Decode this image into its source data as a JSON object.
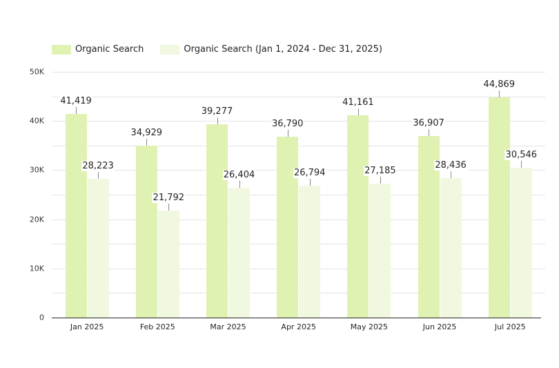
{
  "legend": {
    "items": [
      {
        "label": "Organic Search",
        "color": "#dff2b2"
      },
      {
        "label": "Organic Search (Jan 1, 2024 - Dec 31, 2025)",
        "color": "#f1f8e0"
      }
    ]
  },
  "y_axis": {
    "ticks": [
      {
        "value": 0,
        "label": "0"
      },
      {
        "value": 10000,
        "label": "10K"
      },
      {
        "value": 20000,
        "label": "20K"
      },
      {
        "value": 30000,
        "label": "30K"
      },
      {
        "value": 40000,
        "label": "40K"
      },
      {
        "value": 50000,
        "label": "50K"
      }
    ]
  },
  "chart_data": {
    "type": "bar",
    "title": "",
    "xlabel": "",
    "ylabel": "",
    "ylim": [
      0,
      50000
    ],
    "grid": true,
    "legend_position": "top-left",
    "categories": [
      "Jan 2025",
      "Feb 2025",
      "Mar 2025",
      "Apr 2025",
      "May 2025",
      "Jun 2025",
      "Jul 2025"
    ],
    "series": [
      {
        "name": "Organic Search",
        "color": "#dff2b2",
        "values": [
          41419,
          34929,
          39277,
          36790,
          41161,
          36907,
          44869
        ],
        "labels": [
          "41,419",
          "34,929",
          "39,277",
          "36,790",
          "41,161",
          "36,907",
          "44,869"
        ]
      },
      {
        "name": "Organic Search (Jan 1, 2024 - Dec 31, 2025)",
        "color": "#f1f8e0",
        "values": [
          28223,
          21792,
          26404,
          26794,
          27185,
          28436,
          30546
        ],
        "labels": [
          "28,223",
          "21,792",
          "26,404",
          "26,794",
          "27,185",
          "28,436",
          "30,546"
        ]
      }
    ]
  }
}
